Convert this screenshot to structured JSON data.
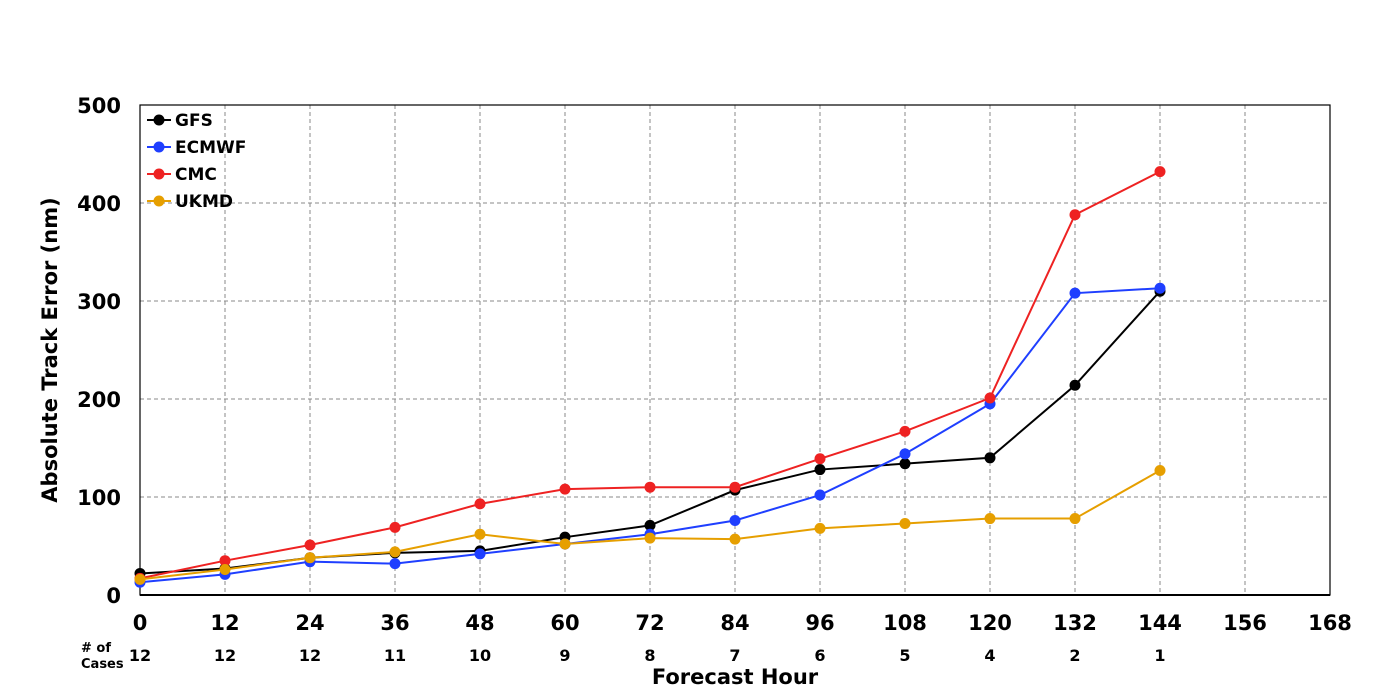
{
  "chart_data": {
    "type": "line",
    "xlabel": "Forecast Hour",
    "ylabel": "Absolute Track Error (nm)",
    "xlim": [
      0,
      168
    ],
    "ylim": [
      0,
      500
    ],
    "x_ticks": [
      "0",
      "12",
      "24",
      "36",
      "48",
      "60",
      "72",
      "84",
      "96",
      "108",
      "120",
      "132",
      "144",
      "156",
      "168"
    ],
    "y_ticks": [
      "0",
      "100",
      "200",
      "300",
      "400",
      "500"
    ],
    "grid": true,
    "legend_position": "top-left",
    "cases_title_line1": "# of",
    "cases_title_line2": "Cases",
    "cases": [
      {
        "x": 0,
        "n": "12"
      },
      {
        "x": 12,
        "n": "12"
      },
      {
        "x": 24,
        "n": "12"
      },
      {
        "x": 36,
        "n": "11"
      },
      {
        "x": 48,
        "n": "10"
      },
      {
        "x": 60,
        "n": "9"
      },
      {
        "x": 72,
        "n": "8"
      },
      {
        "x": 84,
        "n": "7"
      },
      {
        "x": 96,
        "n": "6"
      },
      {
        "x": 108,
        "n": "5"
      },
      {
        "x": 120,
        "n": "4"
      },
      {
        "x": 132,
        "n": "2"
      },
      {
        "x": 144,
        "n": "1"
      }
    ],
    "x": [
      0,
      12,
      24,
      36,
      48,
      60,
      72,
      84,
      96,
      108,
      120,
      132,
      144
    ],
    "series": [
      {
        "name": "GFS",
        "color": "#000000",
        "values": [
          22,
          27,
          38,
          43,
          45,
          59,
          71,
          107,
          128,
          134,
          140,
          214,
          310
        ]
      },
      {
        "name": "ECMWF",
        "color": "#1f3fff",
        "values": [
          13,
          21,
          34,
          32,
          42,
          52,
          62,
          76,
          102,
          144,
          195,
          308,
          313
        ]
      },
      {
        "name": "CMC",
        "color": "#ee2222",
        "values": [
          17,
          35,
          51,
          69,
          93,
          108,
          110,
          110,
          139,
          167,
          201,
          388,
          432
        ]
      },
      {
        "name": "UKMD",
        "color": "#e69f00",
        "values": [
          16,
          26,
          38,
          44,
          62,
          52,
          58,
          57,
          68,
          73,
          78,
          78,
          127
        ]
      }
    ]
  }
}
